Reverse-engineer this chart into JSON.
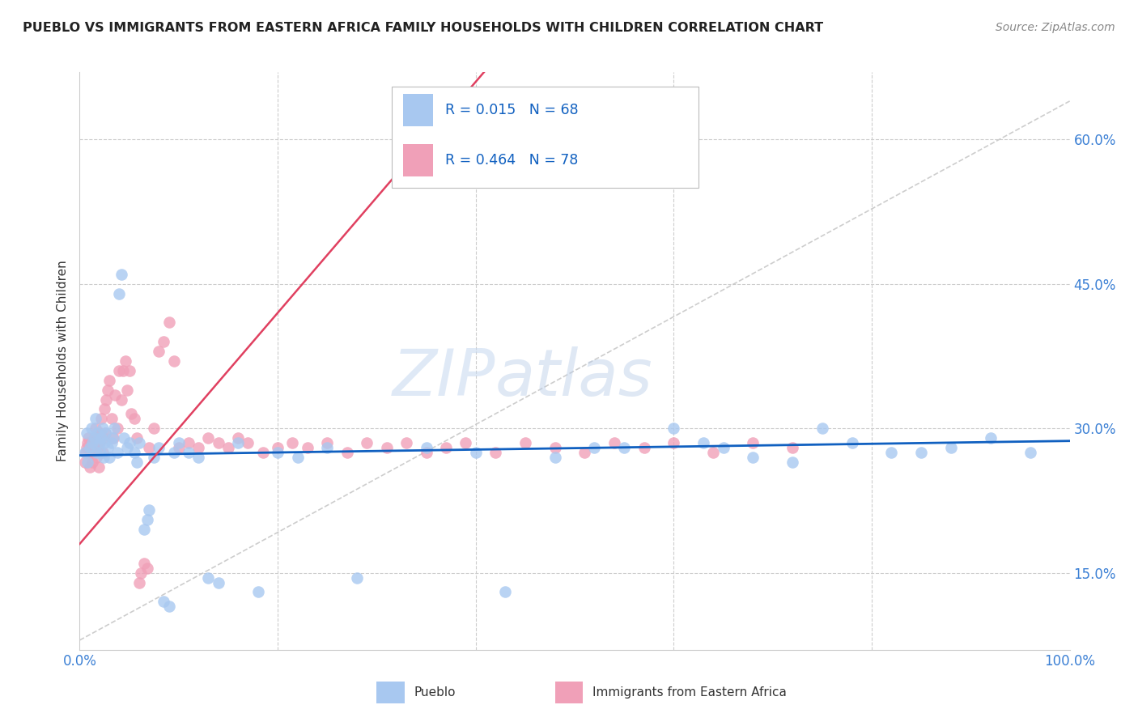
{
  "title": "PUEBLO VS IMMIGRANTS FROM EASTERN AFRICA FAMILY HOUSEHOLDS WITH CHILDREN CORRELATION CHART",
  "source": "Source: ZipAtlas.com",
  "ylabel": "Family Households with Children",
  "xlim": [
    0.0,
    1.0
  ],
  "ylim": [
    0.07,
    0.67
  ],
  "xticks": [
    0.0,
    0.2,
    0.4,
    0.6,
    0.8,
    1.0
  ],
  "xticklabels": [
    "0.0%",
    "",
    "",
    "",
    "",
    "100.0%"
  ],
  "yticks": [
    0.15,
    0.3,
    0.45,
    0.6
  ],
  "yticklabels": [
    "15.0%",
    "30.0%",
    "45.0%",
    "60.0%"
  ],
  "legend_label1": "Pueblo",
  "legend_label2": "Immigrants from Eastern Africa",
  "R1": "0.015",
  "N1": "68",
  "R2": "0.464",
  "N2": "78",
  "color1": "#a8c8f0",
  "color2": "#f0a0b8",
  "trendline1_color": "#1060c0",
  "trendline2_color": "#e04060",
  "background_color": "#ffffff",
  "grid_color": "#cccccc",
  "pueblo_x": [
    0.005,
    0.007,
    0.008,
    0.01,
    0.012,
    0.013,
    0.015,
    0.016,
    0.017,
    0.018,
    0.02,
    0.021,
    0.022,
    0.023,
    0.024,
    0.025,
    0.026,
    0.028,
    0.03,
    0.032,
    0.033,
    0.035,
    0.038,
    0.04,
    0.042,
    0.045,
    0.048,
    0.05,
    0.055,
    0.058,
    0.06,
    0.065,
    0.068,
    0.07,
    0.075,
    0.08,
    0.085,
    0.09,
    0.095,
    0.1,
    0.11,
    0.12,
    0.13,
    0.14,
    0.16,
    0.18,
    0.2,
    0.22,
    0.25,
    0.28,
    0.35,
    0.4,
    0.43,
    0.48,
    0.52,
    0.55,
    0.6,
    0.63,
    0.65,
    0.68,
    0.72,
    0.75,
    0.78,
    0.82,
    0.85,
    0.88,
    0.92,
    0.96
  ],
  "pueblo_y": [
    0.275,
    0.295,
    0.265,
    0.28,
    0.3,
    0.285,
    0.29,
    0.31,
    0.275,
    0.295,
    0.285,
    0.275,
    0.29,
    0.3,
    0.27,
    0.285,
    0.295,
    0.28,
    0.27,
    0.285,
    0.29,
    0.3,
    0.275,
    0.44,
    0.46,
    0.29,
    0.28,
    0.285,
    0.275,
    0.265,
    0.285,
    0.195,
    0.205,
    0.215,
    0.27,
    0.28,
    0.12,
    0.115,
    0.275,
    0.285,
    0.275,
    0.27,
    0.145,
    0.14,
    0.285,
    0.13,
    0.275,
    0.27,
    0.28,
    0.145,
    0.28,
    0.275,
    0.13,
    0.27,
    0.28,
    0.28,
    0.3,
    0.285,
    0.28,
    0.27,
    0.265,
    0.3,
    0.285,
    0.275,
    0.275,
    0.28,
    0.29,
    0.275
  ],
  "ea_x": [
    0.005,
    0.006,
    0.007,
    0.008,
    0.009,
    0.01,
    0.011,
    0.012,
    0.013,
    0.014,
    0.015,
    0.016,
    0.017,
    0.018,
    0.019,
    0.02,
    0.021,
    0.022,
    0.023,
    0.024,
    0.025,
    0.026,
    0.027,
    0.028,
    0.03,
    0.032,
    0.034,
    0.036,
    0.038,
    0.04,
    0.042,
    0.044,
    0.046,
    0.048,
    0.05,
    0.052,
    0.055,
    0.058,
    0.06,
    0.062,
    0.065,
    0.068,
    0.07,
    0.075,
    0.08,
    0.085,
    0.09,
    0.095,
    0.1,
    0.11,
    0.12,
    0.13,
    0.14,
    0.15,
    0.16,
    0.17,
    0.185,
    0.2,
    0.215,
    0.23,
    0.25,
    0.27,
    0.29,
    0.31,
    0.33,
    0.35,
    0.37,
    0.39,
    0.42,
    0.45,
    0.48,
    0.51,
    0.54,
    0.57,
    0.6,
    0.64,
    0.68,
    0.72
  ],
  "ea_y": [
    0.265,
    0.275,
    0.28,
    0.285,
    0.29,
    0.26,
    0.275,
    0.285,
    0.265,
    0.28,
    0.29,
    0.3,
    0.27,
    0.28,
    0.26,
    0.285,
    0.295,
    0.31,
    0.275,
    0.29,
    0.32,
    0.295,
    0.33,
    0.34,
    0.35,
    0.31,
    0.29,
    0.335,
    0.3,
    0.36,
    0.33,
    0.36,
    0.37,
    0.34,
    0.36,
    0.315,
    0.31,
    0.29,
    0.14,
    0.15,
    0.16,
    0.155,
    0.28,
    0.3,
    0.38,
    0.39,
    0.41,
    0.37,
    0.28,
    0.285,
    0.28,
    0.29,
    0.285,
    0.28,
    0.29,
    0.285,
    0.275,
    0.28,
    0.285,
    0.28,
    0.285,
    0.275,
    0.285,
    0.28,
    0.285,
    0.275,
    0.28,
    0.285,
    0.275,
    0.285,
    0.28,
    0.275,
    0.285,
    0.28,
    0.285,
    0.275,
    0.285,
    0.28
  ]
}
